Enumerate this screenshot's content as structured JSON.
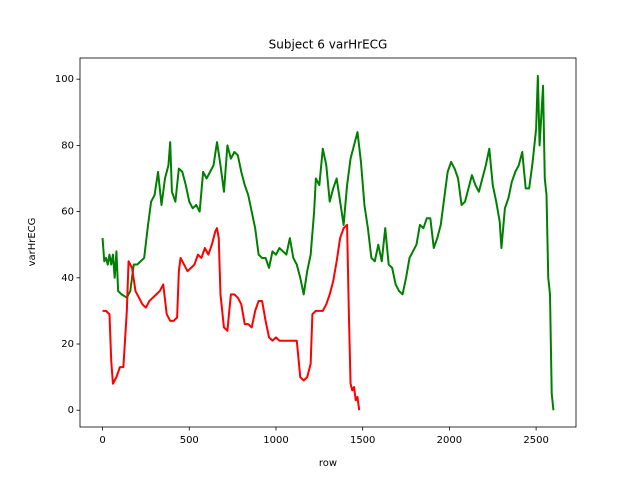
{
  "chart_data": {
    "type": "line",
    "title": "Subject 6 varHrECG",
    "x_label": "row",
    "y_label": "varHrECG",
    "xlim": [
      -130,
      2730
    ],
    "ylim": [
      -5.07,
      106.4
    ],
    "xticks": [
      0,
      500,
      1000,
      1500,
      2000,
      2500
    ],
    "yticks": [
      0,
      20,
      40,
      60,
      80,
      100
    ],
    "grid": false,
    "series": [
      {
        "color": "#008000",
        "x": [
          0,
          10,
          20,
          30,
          40,
          50,
          60,
          70,
          80,
          90,
          110,
          140,
          160,
          180,
          200,
          220,
          240,
          260,
          280,
          300,
          320,
          340,
          360,
          380,
          390,
          400,
          420,
          440,
          460,
          480,
          500,
          520,
          540,
          560,
          580,
          600,
          620,
          640,
          660,
          680,
          700,
          720,
          740,
          760,
          780,
          800,
          820,
          840,
          860,
          880,
          900,
          920,
          940,
          960,
          980,
          1000,
          1020,
          1040,
          1060,
          1080,
          1100,
          1120,
          1140,
          1160,
          1180,
          1200,
          1220,
          1230,
          1250,
          1270,
          1290,
          1310,
          1330,
          1350,
          1370,
          1390,
          1410,
          1430,
          1450,
          1470,
          1490,
          1510,
          1530,
          1550,
          1570,
          1590,
          1610,
          1630,
          1650,
          1670,
          1690,
          1710,
          1730,
          1750,
          1770,
          1790,
          1810,
          1830,
          1850,
          1870,
          1890,
          1910,
          1930,
          1950,
          1970,
          1990,
          2010,
          2030,
          2050,
          2070,
          2090,
          2110,
          2130,
          2150,
          2170,
          2190,
          2210,
          2230,
          2250,
          2270,
          2290,
          2300,
          2320,
          2340,
          2360,
          2380,
          2400,
          2420,
          2440,
          2460,
          2480,
          2500,
          2510,
          2520,
          2540,
          2550,
          2560,
          2570,
          2580,
          2590,
          2600
        ],
        "values": [
          52,
          45,
          46,
          44,
          47,
          44,
          47,
          40,
          48,
          36,
          35,
          34,
          36,
          44,
          44,
          45,
          46,
          55,
          63,
          65,
          72,
          62,
          70,
          74,
          81,
          66,
          63,
          73,
          72,
          68,
          63,
          61,
          62,
          60,
          72,
          70,
          72,
          74,
          81,
          74,
          66,
          80,
          76,
          78,
          77,
          72,
          68,
          65,
          60,
          55,
          47,
          46,
          46,
          43,
          48,
          47,
          49,
          48,
          47,
          52,
          46,
          44,
          40,
          35,
          42,
          47,
          60,
          70,
          68,
          79,
          74,
          63,
          67,
          70,
          63,
          56,
          68,
          76,
          80,
          84,
          75,
          62,
          55,
          46,
          45,
          50,
          45,
          55,
          44,
          43,
          38,
          36,
          35,
          40,
          46,
          48,
          50,
          56,
          55,
          58,
          58,
          49,
          52,
          56,
          64,
          72,
          75,
          73,
          70,
          62,
          63,
          67,
          71,
          68,
          66,
          70,
          74,
          79,
          68,
          63,
          57,
          49,
          61,
          64,
          69,
          72,
          74,
          78,
          67,
          67,
          75,
          85,
          101,
          80,
          98,
          70,
          65,
          40,
          35,
          5,
          0
        ]
      },
      {
        "color": "#ff0000",
        "x": [
          0,
          20,
          40,
          50,
          60,
          80,
          100,
          120,
          140,
          150,
          170,
          190,
          210,
          230,
          250,
          270,
          290,
          310,
          330,
          350,
          370,
          390,
          410,
          430,
          440,
          450,
          470,
          490,
          510,
          530,
          550,
          570,
          590,
          610,
          630,
          650,
          660,
          670,
          680,
          700,
          720,
          740,
          760,
          780,
          800,
          820,
          840,
          860,
          880,
          900,
          920,
          940,
          960,
          980,
          1000,
          1020,
          1040,
          1060,
          1080,
          1100,
          1120,
          1140,
          1160,
          1180,
          1200,
          1210,
          1230,
          1250,
          1270,
          1290,
          1310,
          1330,
          1350,
          1370,
          1390,
          1410,
          1420,
          1430,
          1440,
          1450,
          1460,
          1470,
          1480
        ],
        "values": [
          30,
          30,
          29,
          15,
          8,
          10,
          13,
          13,
          30,
          45,
          43,
          36,
          34,
          32,
          31,
          33,
          34,
          35,
          36,
          38,
          29,
          27,
          27,
          28,
          42,
          46,
          44,
          42,
          43,
          44,
          47,
          46,
          49,
          47,
          50,
          54,
          55,
          52,
          35,
          25,
          24,
          35,
          35,
          34,
          32,
          26,
          26,
          25,
          30,
          33,
          33,
          27,
          22,
          21,
          22,
          21,
          21,
          21,
          21,
          21,
          21,
          10,
          9,
          10,
          14,
          29,
          30,
          30,
          30,
          32,
          35,
          39,
          45,
          52,
          55,
          56,
          30,
          8,
          6,
          7,
          3,
          4,
          0
        ]
      }
    ]
  }
}
